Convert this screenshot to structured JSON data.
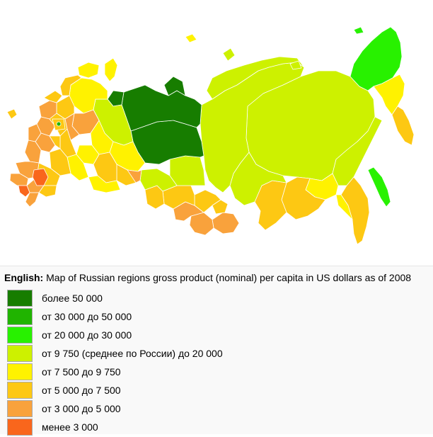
{
  "map": {
    "colors": {
      "over_50000": "#177d00",
      "from_30000_to_50000": "#20b400",
      "from_20000_to_30000": "#28f100",
      "from_9750_to_20000": "#cdf100",
      "from_7500_to_9750": "#fff200",
      "from_5000_to_7500": "#fdc813",
      "from_3000_to_5000": "#f9a23c",
      "under_3000": "#f9661c"
    }
  },
  "caption": {
    "lang_label": "English:",
    "text": " Map of Russian regions gross product (nominal) per capita in US dollars as of 2008"
  },
  "legend": [
    {
      "label": "более 50 000",
      "color": "#177d00"
    },
    {
      "label": "от 30 000 до 50 000",
      "color": "#20b400"
    },
    {
      "label": "от 20 000 до 30 000",
      "color": "#28f100"
    },
    {
      "label": "от 9 750 (среднее по России) до 20 000",
      "color": "#cdf100"
    },
    {
      "label": "от 7 500 до 9 750",
      "color": "#fff200"
    },
    {
      "label": "от 5 000 до 7 500",
      "color": "#fdc813"
    },
    {
      "label": "от 3 000 до 5 000",
      "color": "#f9a23c"
    },
    {
      "label": "менее 3 000",
      "color": "#f9661c"
    }
  ]
}
